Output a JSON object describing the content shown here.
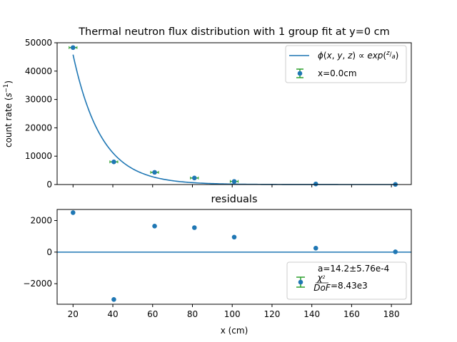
{
  "colors": {
    "series": "#1f77b4",
    "errorbar": "#2ca02c"
  },
  "chart_data": [
    {
      "type": "scatter",
      "title": "Thermal neutron flux distribution with 1 group fit at y=0 cm",
      "xlabel": "",
      "ylabel": "count rate (s⁻¹)",
      "xlim": [
        12,
        190
      ],
      "ylim": [
        0,
        50000
      ],
      "yticks": [
        0,
        10000,
        20000,
        30000,
        40000,
        50000
      ],
      "ytick_labels": [
        "0",
        "10000",
        "20000",
        "30000",
        "40000",
        "50000"
      ],
      "legend": {
        "position": "upper right",
        "entries": [
          "ϕ(x,y,z) ∝ exp(z/a)",
          "x=0.0cm"
        ]
      },
      "series": [
        {
          "name": "x=0.0cm",
          "kind": "points",
          "x": [
            20,
            40.5,
            61,
            81,
            101,
            142,
            182
          ],
          "y": [
            48300,
            8000,
            4300,
            2300,
            1100,
            200,
            50
          ],
          "xerr": [
            2,
            2,
            2,
            2,
            2,
            0,
            0
          ]
        },
        {
          "name": "ϕ(x,y,z) ∝ exp(z/a)",
          "kind": "line",
          "fit": {
            "A": 45800,
            "a": 14.2,
            "x0": 20,
            "x_start": 20,
            "x_end": 182
          }
        }
      ]
    },
    {
      "type": "scatter",
      "title": "residuals",
      "xlabel": "x (cm)",
      "ylabel": "",
      "xlim": [
        12,
        190
      ],
      "ylim": [
        -3300,
        2700
      ],
      "yticks": [
        -2000,
        0,
        2000
      ],
      "ytick_labels": [
        "−2000",
        "0",
        "2000"
      ],
      "xticks": [
        20,
        40,
        60,
        80,
        100,
        120,
        140,
        160,
        180
      ],
      "xtick_labels": [
        "20",
        "40",
        "60",
        "80",
        "100",
        "120",
        "140",
        "160",
        "180"
      ],
      "legend": {
        "position": "lower right",
        "entries": [
          "a=14.2±5.76e-4",
          "χ²/DoF=8.43e3"
        ]
      },
      "series": [
        {
          "name": "residuals",
          "kind": "points",
          "x": [
            20,
            40.5,
            61,
            81,
            101,
            142,
            182
          ],
          "y": [
            2500,
            -3000,
            1650,
            1550,
            950,
            250,
            20
          ]
        }
      ],
      "hline": 0
    }
  ]
}
